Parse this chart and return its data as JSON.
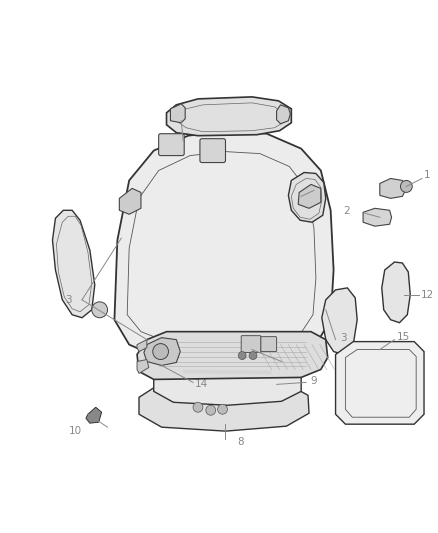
{
  "background_color": "#ffffff",
  "figure_width": 4.38,
  "figure_height": 5.33,
  "dpi": 100,
  "label_color": "#888888",
  "label_fontsize": 7.5,
  "line_color": "#888888"
}
